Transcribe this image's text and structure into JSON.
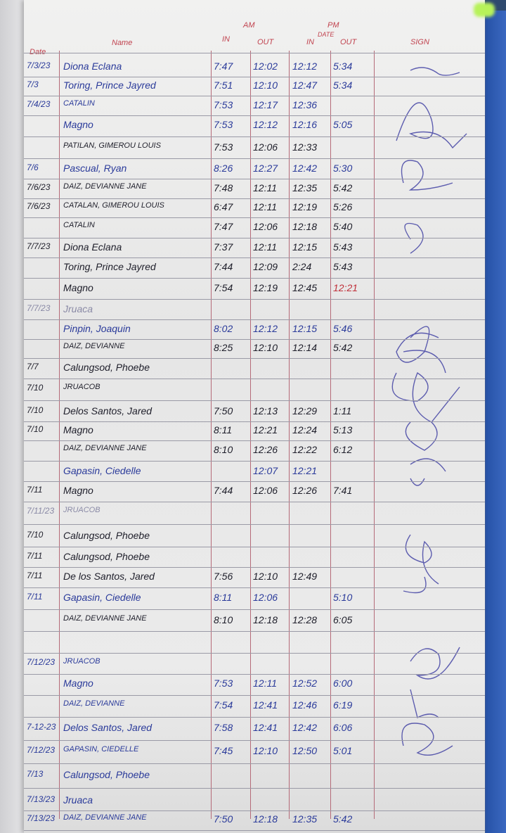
{
  "header": {
    "date": "Date",
    "name": "Name",
    "am": "AM",
    "am_in": "IN",
    "am_out": "OUT",
    "pm": "PM",
    "pm_date": "DATE",
    "pm_in": "IN",
    "pm_out": "OUT",
    "sign": "SIGN"
  },
  "colors": {
    "ink_blue": "#2a3a9a",
    "ink_black": "#1e1e2a",
    "rule_red": "#c1434f",
    "cover_blue": "#3b68c0"
  },
  "rows": [
    {
      "date": "7/3/23",
      "name": "Diona Eclana",
      "am_in": "7:47",
      "am_out": "12:02",
      "pm_in": "12:12",
      "pm_out": "5:34",
      "ink": "blue"
    },
    {
      "date": "7/3",
      "name": "Toring, Prince Jayred",
      "am_in": "7:51",
      "am_out": "12:10",
      "pm_in": "12:47",
      "pm_out": "5:34",
      "ink": "blue"
    },
    {
      "date": "7/4/23",
      "name": "CATALIN",
      "am_in": "7:53",
      "am_out": "12:17",
      "pm_in": "12:36",
      "pm_out": "",
      "ink": "blue"
    },
    {
      "date": "",
      "name": "Magno",
      "am_in": "7:53",
      "am_out": "12:12",
      "pm_in": "12:16",
      "pm_out": "5:05",
      "ink": "blue"
    },
    {
      "date": "",
      "name": "PATILAN, GIMEROU LOUIS",
      "am_in": "7:53",
      "am_out": "12:06",
      "pm_in": "12:33",
      "pm_out": "",
      "ink": "black"
    },
    {
      "date": "7/6",
      "name": "Pascual, Ryan",
      "am_in": "8:26",
      "am_out": "12:27",
      "pm_in": "12:42",
      "pm_out": "5:30",
      "ink": "blue"
    },
    {
      "date": "7/6/23",
      "name": "DAIZ, DEVIANNE JANE",
      "am_in": "7:48",
      "am_out": "12:11",
      "pm_in": "12:35",
      "pm_out": "5:42",
      "ink": "black"
    },
    {
      "date": "7/6/23",
      "name": "CATALAN, GIMEROU LOUIS",
      "am_in": "6:47",
      "am_out": "12:11",
      "pm_in": "12:19",
      "pm_out": "5:26",
      "ink": "black"
    },
    {
      "date": "",
      "name": "CATALIN",
      "am_in": "7:47",
      "am_out": "12:06",
      "pm_in": "12:18",
      "pm_out": "5:40",
      "ink": "black"
    },
    {
      "date": "7/7/23",
      "name": "Diona Eclana",
      "am_in": "7:37",
      "am_out": "12:11",
      "pm_in": "12:15",
      "pm_out": "5:43",
      "ink": "black"
    },
    {
      "date": "",
      "name": "Toring, Prince Jayred",
      "am_in": "7:44",
      "am_out": "12:09",
      "pm_in": "2:24",
      "pm_out": "5:43",
      "ink": "black"
    },
    {
      "date": "",
      "name": "Magno",
      "am_in": "7:54",
      "am_out": "12:19",
      "pm_in": "12:45",
      "pm_out": "12:21",
      "ink": "black"
    },
    {
      "date": "7/7/23",
      "name": "Jruaca",
      "am_in": "",
      "am_out": "",
      "pm_in": "",
      "pm_out": "",
      "ink": "faded"
    },
    {
      "date": "",
      "name": "Pinpin, Joaquin",
      "am_in": "8:02",
      "am_out": "12:12",
      "pm_in": "12:15",
      "pm_out": "5:46",
      "ink": "blue"
    },
    {
      "date": "",
      "name": "DAIZ, DEVIANNE",
      "am_in": "8:25",
      "am_out": "12:10",
      "pm_in": "12:14",
      "pm_out": "5:42",
      "ink": "black"
    },
    {
      "date": "7/7",
      "name": "Calungsod, Phoebe",
      "am_in": "",
      "am_out": "",
      "pm_in": "",
      "pm_out": "",
      "ink": "black"
    },
    {
      "date": "7/10",
      "name": "JRUACOB",
      "am_in": "",
      "am_out": "",
      "pm_in": "",
      "pm_out": "",
      "ink": "black"
    },
    {
      "date": "7/10",
      "name": "Delos Santos, Jared",
      "am_in": "7:50",
      "am_out": "12:13",
      "pm_in": "12:29",
      "pm_out": "1:11",
      "ink": "black"
    },
    {
      "date": "7/10",
      "name": "Magno",
      "am_in": "8:11",
      "am_out": "12:21",
      "pm_in": "12:24",
      "pm_out": "5:13",
      "ink": "black"
    },
    {
      "date": "",
      "name": "DAIZ, DEVIANNE JANE",
      "am_in": "8:10",
      "am_out": "12:26",
      "pm_in": "12:22",
      "pm_out": "6:12",
      "ink": "black"
    },
    {
      "date": "",
      "name": "Gapasin, Ciedelle",
      "am_in": "",
      "am_out": "12:07",
      "pm_in": "12:21",
      "pm_out": "",
      "ink": "blue"
    },
    {
      "date": "7/11",
      "name": "Magno",
      "am_in": "7:44",
      "am_out": "12:06",
      "pm_in": "12:26",
      "pm_out": "7:41",
      "ink": "black"
    },
    {
      "date": "7/11/23",
      "name": "JRUACOB",
      "am_in": "",
      "am_out": "",
      "pm_in": "",
      "pm_out": "",
      "ink": "faded"
    },
    {
      "date": "7/10",
      "name": "Calungsod, Phoebe",
      "am_in": "",
      "am_out": "",
      "pm_in": "",
      "pm_out": "",
      "ink": "black"
    },
    {
      "date": "7/11",
      "name": "Calungsod, Phoebe",
      "am_in": "",
      "am_out": "",
      "pm_in": "",
      "pm_out": "",
      "ink": "black"
    },
    {
      "date": "7/11",
      "name": "De los Santos, Jared",
      "am_in": "7:56",
      "am_out": "12:10",
      "pm_in": "12:49",
      "pm_out": "",
      "ink": "black"
    },
    {
      "date": "7/11",
      "name": "Gapasin, Ciedelle",
      "am_in": "8:11",
      "am_out": "12:06",
      "pm_in": "",
      "pm_out": "5:10",
      "ink": "blue"
    },
    {
      "date": "",
      "name": "DAIZ, DEVIANNE JANE",
      "am_in": "8:10",
      "am_out": "12:18",
      "pm_in": "12:28",
      "pm_out": "6:05",
      "ink": "black"
    },
    {
      "date": "",
      "name": "",
      "am_in": "",
      "am_out": "",
      "pm_in": "",
      "pm_out": "",
      "ink": "black"
    },
    {
      "date": "7/12/23",
      "name": "JRUACOB",
      "am_in": "",
      "am_out": "",
      "pm_in": "",
      "pm_out": "",
      "ink": "blue"
    },
    {
      "date": "",
      "name": "Magno",
      "am_in": "7:53",
      "am_out": "12:11",
      "pm_in": "12:52",
      "pm_out": "6:00",
      "ink": "blue"
    },
    {
      "date": "",
      "name": "DAIZ, DEVIANNE",
      "am_in": "7:54",
      "am_out": "12:41",
      "pm_in": "12:46",
      "pm_out": "6:19",
      "ink": "blue"
    },
    {
      "date": "7-12-23",
      "name": "Delos Santos, Jared",
      "am_in": "7:58",
      "am_out": "12:41",
      "pm_in": "12:42",
      "pm_out": "6:06",
      "ink": "blue"
    },
    {
      "date": "7/12/23",
      "name": "GAPASIN, CIEDELLE",
      "am_in": "7:45",
      "am_out": "12:10",
      "pm_in": "12:50",
      "pm_out": "5:01",
      "ink": "blue"
    },
    {
      "date": "7/13",
      "name": "Calungsod, Phoebe",
      "am_in": "",
      "am_out": "",
      "pm_in": "",
      "pm_out": "",
      "ink": "blue"
    },
    {
      "date": "7/13/23",
      "name": "Jruaca",
      "am_in": "",
      "am_out": "",
      "pm_in": "",
      "pm_out": "",
      "ink": "blue"
    },
    {
      "date": "7/13/23",
      "name": "DAIZ, DEVIANNE JANE",
      "am_in": "7:50",
      "am_out": "12:18",
      "pm_in": "12:35",
      "pm_out": "5:42",
      "ink": "blue"
    }
  ]
}
